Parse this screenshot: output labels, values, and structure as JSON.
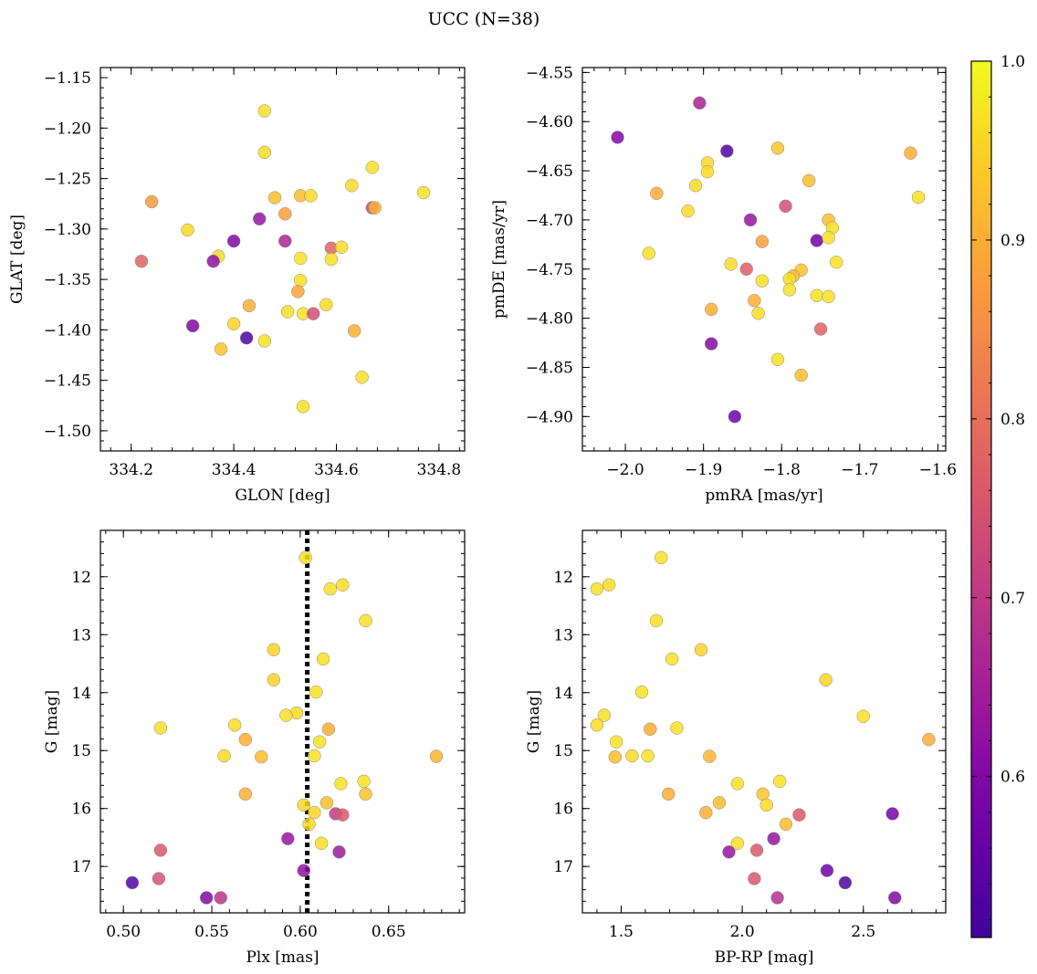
{
  "figure": {
    "title": "UCC (N=38)",
    "colormap": "plasma",
    "colorbar": {
      "min": 0.51,
      "max": 1.0,
      "ticks": [
        0.6,
        0.7,
        0.8,
        0.9,
        1.0
      ],
      "tick_labels": [
        "0.6",
        "0.7",
        "0.8",
        "0.9",
        "1.0"
      ]
    }
  },
  "chart_data": [
    {
      "type": "scatter",
      "xlabel": "GLON [deg]",
      "ylabel": "GLAT [deg]",
      "xlim": [
        334.14,
        334.85
      ],
      "ylim": [
        -1.52,
        -1.14
      ],
      "xticks": [
        334.2,
        334.4,
        334.6,
        334.8
      ],
      "xtick_labels": [
        "334.2",
        "334.4",
        "334.6",
        "334.8"
      ],
      "yticks": [
        -1.5,
        -1.45,
        -1.4,
        -1.35,
        -1.3,
        -1.25,
        -1.2,
        -1.15
      ],
      "ytick_labels": [
        "−1.50",
        "−1.45",
        "−1.40",
        "−1.35",
        "−1.30",
        "−1.25",
        "−1.20",
        "−1.15"
      ],
      "grid": false,
      "points": [
        {
          "x": 334.46,
          "y": -1.183,
          "c": 0.97
        },
        {
          "x": 334.46,
          "y": -1.224,
          "c": 0.96
        },
        {
          "x": 334.67,
          "y": -1.239,
          "c": 0.97
        },
        {
          "x": 334.77,
          "y": -1.264,
          "c": 0.97
        },
        {
          "x": 334.24,
          "y": -1.273,
          "c": 0.87
        },
        {
          "x": 334.48,
          "y": -1.269,
          "c": 0.92
        },
        {
          "x": 334.53,
          "y": -1.267,
          "c": 0.92
        },
        {
          "x": 334.55,
          "y": -1.267,
          "c": 0.96
        },
        {
          "x": 334.63,
          "y": -1.257,
          "c": 0.96
        },
        {
          "x": 334.5,
          "y": -1.285,
          "c": 0.88
        },
        {
          "x": 334.67,
          "y": -1.279,
          "c": 0.72
        },
        {
          "x": 334.675,
          "y": -1.279,
          "c": 0.91
        },
        {
          "x": 334.45,
          "y": -1.29,
          "c": 0.63
        },
        {
          "x": 334.31,
          "y": -1.301,
          "c": 0.96
        },
        {
          "x": 334.4,
          "y": -1.312,
          "c": 0.6
        },
        {
          "x": 334.5,
          "y": -1.312,
          "c": 0.66
        },
        {
          "x": 334.59,
          "y": -1.319,
          "c": 0.78
        },
        {
          "x": 334.61,
          "y": -1.318,
          "c": 0.96
        },
        {
          "x": 334.37,
          "y": -1.327,
          "c": 0.96
        },
        {
          "x": 334.36,
          "y": -1.332,
          "c": 0.62
        },
        {
          "x": 334.53,
          "y": -1.329,
          "c": 0.97
        },
        {
          "x": 334.59,
          "y": -1.33,
          "c": 0.97
        },
        {
          "x": 334.22,
          "y": -1.332,
          "c": 0.78
        },
        {
          "x": 334.53,
          "y": -1.351,
          "c": 0.97
        },
        {
          "x": 334.525,
          "y": -1.362,
          "c": 0.89
        },
        {
          "x": 334.58,
          "y": -1.375,
          "c": 0.96
        },
        {
          "x": 334.43,
          "y": -1.376,
          "c": 0.9
        },
        {
          "x": 334.505,
          "y": -1.382,
          "c": 0.97
        },
        {
          "x": 334.535,
          "y": -1.384,
          "c": 0.97
        },
        {
          "x": 334.555,
          "y": -1.384,
          "c": 0.74
        },
        {
          "x": 334.32,
          "y": -1.396,
          "c": 0.6
        },
        {
          "x": 334.4,
          "y": -1.394,
          "c": 0.95
        },
        {
          "x": 334.635,
          "y": -1.401,
          "c": 0.9
        },
        {
          "x": 334.425,
          "y": -1.408,
          "c": 0.52
        },
        {
          "x": 334.46,
          "y": -1.411,
          "c": 0.97
        },
        {
          "x": 334.375,
          "y": -1.419,
          "c": 0.93
        },
        {
          "x": 334.65,
          "y": -1.447,
          "c": 0.97
        },
        {
          "x": 334.535,
          "y": -1.476,
          "c": 0.97
        }
      ]
    },
    {
      "type": "scatter",
      "xlabel": "pmRA [mas/yr]",
      "ylabel": "pmDE [mas/yr]",
      "xlim": [
        -2.055,
        -1.59
      ],
      "ylim": [
        -4.935,
        -4.545
      ],
      "xticks": [
        -2.0,
        -1.9,
        -1.8,
        -1.7,
        -1.6
      ],
      "xtick_labels": [
        "−2.0",
        "−1.9",
        "−1.8",
        "−1.7",
        "−1.6"
      ],
      "yticks": [
        -4.9,
        -4.85,
        -4.8,
        -4.75,
        -4.7,
        -4.65,
        -4.6,
        -4.55
      ],
      "ytick_labels": [
        "−4.90",
        "−4.85",
        "−4.80",
        "−4.75",
        "−4.70",
        "−4.65",
        "−4.60",
        "−4.55"
      ],
      "grid": false,
      "points": [
        {
          "x": -1.905,
          "y": -4.581,
          "c": 0.66
        },
        {
          "x": -2.01,
          "y": -4.616,
          "c": 0.6
        },
        {
          "x": -1.87,
          "y": -4.63,
          "c": 0.53
        },
        {
          "x": -1.805,
          "y": -4.627,
          "c": 0.93
        },
        {
          "x": -1.635,
          "y": -4.632,
          "c": 0.9
        },
        {
          "x": -1.895,
          "y": -4.642,
          "c": 0.96
        },
        {
          "x": -1.895,
          "y": -4.651,
          "c": 0.96
        },
        {
          "x": -1.765,
          "y": -4.66,
          "c": 0.92
        },
        {
          "x": -1.91,
          "y": -4.665,
          "c": 0.96
        },
        {
          "x": -1.96,
          "y": -4.673,
          "c": 0.9
        },
        {
          "x": -1.625,
          "y": -4.677,
          "c": 0.97
        },
        {
          "x": -1.795,
          "y": -4.686,
          "c": 0.74
        },
        {
          "x": -1.92,
          "y": -4.691,
          "c": 0.96
        },
        {
          "x": -1.84,
          "y": -4.7,
          "c": 0.63
        },
        {
          "x": -1.74,
          "y": -4.7,
          "c": 0.92
        },
        {
          "x": -1.735,
          "y": -4.708,
          "c": 0.97
        },
        {
          "x": -1.755,
          "y": -4.721,
          "c": 0.57
        },
        {
          "x": -1.74,
          "y": -4.718,
          "c": 0.97
        },
        {
          "x": -1.825,
          "y": -4.722,
          "c": 0.88
        },
        {
          "x": -1.97,
          "y": -4.734,
          "c": 0.97
        },
        {
          "x": -1.73,
          "y": -4.743,
          "c": 0.97
        },
        {
          "x": -1.865,
          "y": -4.745,
          "c": 0.96
        },
        {
          "x": -1.845,
          "y": -4.75,
          "c": 0.77
        },
        {
          "x": -1.775,
          "y": -4.751,
          "c": 0.93
        },
        {
          "x": -1.785,
          "y": -4.757,
          "c": 0.91
        },
        {
          "x": -1.79,
          "y": -4.76,
          "c": 0.97
        },
        {
          "x": -1.825,
          "y": -4.762,
          "c": 0.97
        },
        {
          "x": -1.79,
          "y": -4.771,
          "c": 0.97
        },
        {
          "x": -1.755,
          "y": -4.777,
          "c": 0.97
        },
        {
          "x": -1.74,
          "y": -4.778,
          "c": 0.97
        },
        {
          "x": -1.835,
          "y": -4.782,
          "c": 0.9
        },
        {
          "x": -1.89,
          "y": -4.791,
          "c": 0.9
        },
        {
          "x": -1.83,
          "y": -4.795,
          "c": 0.96
        },
        {
          "x": -1.75,
          "y": -4.811,
          "c": 0.78
        },
        {
          "x": -1.89,
          "y": -4.826,
          "c": 0.6
        },
        {
          "x": -1.805,
          "y": -4.842,
          "c": 0.97
        },
        {
          "x": -1.775,
          "y": -4.858,
          "c": 0.92
        },
        {
          "x": -1.86,
          "y": -4.9,
          "c": 0.57
        }
      ]
    },
    {
      "type": "scatter",
      "xlabel": "Plx [mas]",
      "ylabel": "G [mag]",
      "xlim": [
        0.487,
        0.693
      ],
      "ylim": [
        17.8,
        11.2
      ],
      "y_inverted": true,
      "xticks": [
        0.5,
        0.55,
        0.6,
        0.65
      ],
      "xtick_labels": [
        "0.50",
        "0.55",
        "0.60",
        "0.65"
      ],
      "yticks": [
        12,
        13,
        14,
        15,
        16,
        17
      ],
      "ytick_labels": [
        "12",
        "13",
        "14",
        "15",
        "16",
        "17"
      ],
      "grid": false,
      "vline": {
        "x": 0.604,
        "style": "dotted",
        "color": "#000000"
      },
      "points": [
        {
          "x": 0.603,
          "y": 11.67,
          "c": 0.97
        },
        {
          "x": 0.624,
          "y": 12.14,
          "c": 0.96
        },
        {
          "x": 0.617,
          "y": 12.21,
          "c": 0.97
        },
        {
          "x": 0.637,
          "y": 12.76,
          "c": 0.97
        },
        {
          "x": 0.585,
          "y": 13.26,
          "c": 0.95
        },
        {
          "x": 0.613,
          "y": 13.42,
          "c": 0.97
        },
        {
          "x": 0.585,
          "y": 13.78,
          "c": 0.95
        },
        {
          "x": 0.609,
          "y": 13.99,
          "c": 0.97
        },
        {
          "x": 0.598,
          "y": 14.35,
          "c": 0.96
        },
        {
          "x": 0.592,
          "y": 14.39,
          "c": 0.97
        },
        {
          "x": 0.563,
          "y": 14.56,
          "c": 0.96
        },
        {
          "x": 0.521,
          "y": 14.61,
          "c": 0.97
        },
        {
          "x": 0.616,
          "y": 14.63,
          "c": 0.9
        },
        {
          "x": 0.569,
          "y": 14.81,
          "c": 0.9
        },
        {
          "x": 0.611,
          "y": 14.85,
          "c": 0.97
        },
        {
          "x": 0.557,
          "y": 15.09,
          "c": 0.96
        },
        {
          "x": 0.578,
          "y": 15.11,
          "c": 0.92
        },
        {
          "x": 0.608,
          "y": 15.09,
          "c": 0.97
        },
        {
          "x": 0.677,
          "y": 15.1,
          "c": 0.91
        },
        {
          "x": 0.636,
          "y": 15.53,
          "c": 0.97
        },
        {
          "x": 0.623,
          "y": 15.57,
          "c": 0.97
        },
        {
          "x": 0.569,
          "y": 15.75,
          "c": 0.9
        },
        {
          "x": 0.637,
          "y": 15.75,
          "c": 0.93
        },
        {
          "x": 0.615,
          "y": 15.9,
          "c": 0.92
        },
        {
          "x": 0.602,
          "y": 15.94,
          "c": 0.96
        },
        {
          "x": 0.608,
          "y": 16.07,
          "c": 0.95
        },
        {
          "x": 0.62,
          "y": 16.09,
          "c": 0.7
        },
        {
          "x": 0.624,
          "y": 16.11,
          "c": 0.76
        },
        {
          "x": 0.605,
          "y": 16.27,
          "c": 0.96
        },
        {
          "x": 0.593,
          "y": 16.52,
          "c": 0.63
        },
        {
          "x": 0.612,
          "y": 16.6,
          "c": 0.97
        },
        {
          "x": 0.521,
          "y": 16.72,
          "c": 0.76
        },
        {
          "x": 0.622,
          "y": 16.75,
          "c": 0.64
        },
        {
          "x": 0.602,
          "y": 17.07,
          "c": 0.62
        },
        {
          "x": 0.52,
          "y": 17.21,
          "c": 0.75
        },
        {
          "x": 0.505,
          "y": 17.28,
          "c": 0.53
        },
        {
          "x": 0.547,
          "y": 17.54,
          "c": 0.6
        },
        {
          "x": 0.555,
          "y": 17.54,
          "c": 0.69
        }
      ]
    },
    {
      "type": "scatter",
      "xlabel": "BP-RP [mag]",
      "ylabel": "G [mag]",
      "xlim": [
        1.34,
        2.84
      ],
      "ylim": [
        17.8,
        11.2
      ],
      "y_inverted": true,
      "xticks": [
        1.5,
        2.0,
        2.5
      ],
      "xtick_labels": [
        "1.5",
        "2.0",
        "2.5"
      ],
      "yticks": [
        12,
        13,
        14,
        15,
        16,
        17
      ],
      "ytick_labels": [
        "12",
        "13",
        "14",
        "15",
        "16",
        "17"
      ],
      "grid": false,
      "points": [
        {
          "x": 1.665,
          "y": 11.67,
          "c": 0.97
        },
        {
          "x": 1.4,
          "y": 12.21,
          "c": 0.97
        },
        {
          "x": 1.45,
          "y": 12.14,
          "c": 0.96
        },
        {
          "x": 1.645,
          "y": 12.76,
          "c": 0.97
        },
        {
          "x": 1.83,
          "y": 13.26,
          "c": 0.95
        },
        {
          "x": 1.71,
          "y": 13.42,
          "c": 0.97
        },
        {
          "x": 2.345,
          "y": 13.78,
          "c": 0.95
        },
        {
          "x": 1.585,
          "y": 13.99,
          "c": 0.97
        },
        {
          "x": 1.43,
          "y": 14.39,
          "c": 0.97
        },
        {
          "x": 2.5,
          "y": 14.41,
          "c": 0.97
        },
        {
          "x": 1.4,
          "y": 14.56,
          "c": 0.96
        },
        {
          "x": 1.62,
          "y": 14.63,
          "c": 0.9
        },
        {
          "x": 1.73,
          "y": 14.61,
          "c": 0.97
        },
        {
          "x": 1.48,
          "y": 14.85,
          "c": 0.97
        },
        {
          "x": 2.77,
          "y": 14.81,
          "c": 0.9
        },
        {
          "x": 1.475,
          "y": 15.11,
          "c": 0.92
        },
        {
          "x": 1.545,
          "y": 15.09,
          "c": 0.96
        },
        {
          "x": 1.61,
          "y": 15.09,
          "c": 0.97
        },
        {
          "x": 1.865,
          "y": 15.1,
          "c": 0.91
        },
        {
          "x": 1.98,
          "y": 15.57,
          "c": 0.97
        },
        {
          "x": 2.155,
          "y": 15.53,
          "c": 0.97
        },
        {
          "x": 1.695,
          "y": 15.75,
          "c": 0.9
        },
        {
          "x": 2.085,
          "y": 15.75,
          "c": 0.93
        },
        {
          "x": 1.905,
          "y": 15.9,
          "c": 0.92
        },
        {
          "x": 2.1,
          "y": 15.94,
          "c": 0.96
        },
        {
          "x": 1.85,
          "y": 16.07,
          "c": 0.9
        },
        {
          "x": 2.235,
          "y": 16.11,
          "c": 0.76
        },
        {
          "x": 2.62,
          "y": 16.09,
          "c": 0.58
        },
        {
          "x": 2.18,
          "y": 16.27,
          "c": 0.92
        },
        {
          "x": 2.13,
          "y": 16.52,
          "c": 0.63
        },
        {
          "x": 1.98,
          "y": 16.6,
          "c": 0.97
        },
        {
          "x": 1.945,
          "y": 16.75,
          "c": 0.63
        },
        {
          "x": 2.06,
          "y": 16.72,
          "c": 0.76
        },
        {
          "x": 2.35,
          "y": 17.07,
          "c": 0.57
        },
        {
          "x": 2.05,
          "y": 17.21,
          "c": 0.76
        },
        {
          "x": 2.425,
          "y": 17.28,
          "c": 0.52
        },
        {
          "x": 2.63,
          "y": 17.54,
          "c": 0.6
        },
        {
          "x": 2.145,
          "y": 17.54,
          "c": 0.68
        }
      ]
    }
  ]
}
